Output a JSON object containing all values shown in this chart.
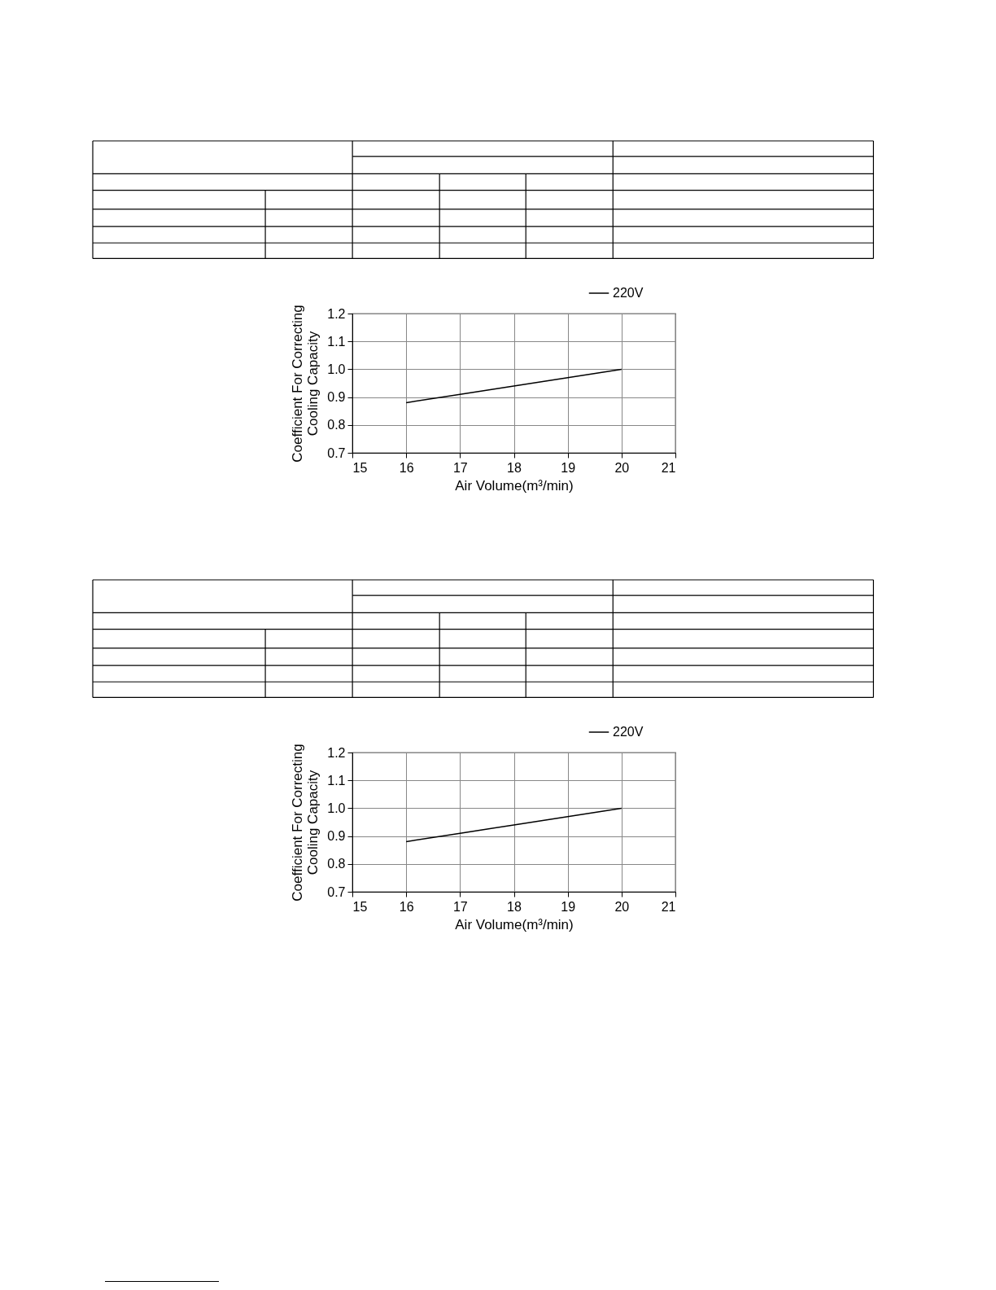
{
  "chart_data": [
    {
      "type": "line",
      "xlabel": "Air Volume(m³/min)",
      "ylabel": "Coefficient For Correcting\nCooling Capacity",
      "x": [
        16,
        17,
        18,
        19,
        20
      ],
      "series": [
        {
          "name": "220V",
          "color": "#000000",
          "values": [
            0.88,
            0.91,
            0.94,
            0.97,
            1.0
          ]
        }
      ],
      "xlim": [
        15,
        21
      ],
      "xticks": [
        15,
        16,
        17,
        18,
        19,
        20,
        21
      ],
      "ylim": [
        0.7,
        1.2
      ],
      "yticks": [
        {
          "value": 0.7,
          "label": "0.7"
        },
        {
          "value": 0.8,
          "label": "0.8"
        },
        {
          "value": 0.9,
          "label": "0.9"
        },
        {
          "value": 1.0,
          "label": "1.0"
        },
        {
          "value": 1.1,
          "label": "1.1"
        },
        {
          "value": 1.2,
          "label": "1.2"
        }
      ],
      "grid": true,
      "legend": "top right"
    },
    {
      "type": "line",
      "xlabel": "Air Volume(m³/min)",
      "ylabel": "Coefficient For Correcting\nCooling Capacity",
      "x": [
        16,
        17,
        18,
        19,
        20
      ],
      "series": [
        {
          "name": "220V",
          "color": "#000000",
          "values": [
            0.88,
            0.91,
            0.94,
            0.97,
            1.0
          ]
        }
      ],
      "xlim": [
        15,
        21
      ],
      "xticks": [
        15,
        16,
        17,
        18,
        19,
        20,
        21
      ],
      "ylim": [
        0.7,
        1.2
      ],
      "yticks": [
        {
          "value": 0.7,
          "label": "0.7"
        },
        {
          "value": 0.8,
          "label": "0.8"
        },
        {
          "value": 0.9,
          "label": "0.9"
        },
        {
          "value": 1.0,
          "label": "1.0"
        },
        {
          "value": 1.1,
          "label": "1.1"
        },
        {
          "value": 1.2,
          "label": "1.2"
        }
      ],
      "grid": true,
      "legend": "top right"
    }
  ]
}
